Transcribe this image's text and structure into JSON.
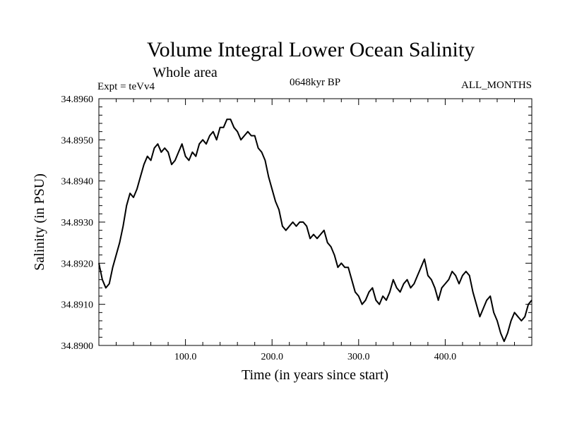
{
  "chart_data": {
    "type": "line",
    "title": "Volume Integral Lower Ocean Salinity",
    "subtitle": "Whole area",
    "experiment_label": "Expt = teVv4",
    "period_label": "0648kyr BP",
    "months_label": "ALL_MONTHS",
    "xlabel": "Time (in years since start)",
    "ylabel": "Salinity (in PSU)",
    "xlim": [
      0,
      500
    ],
    "ylim": [
      34.89,
      34.896
    ],
    "xticks": [
      100,
      200,
      300,
      400
    ],
    "xtick_labels": [
      "100.0",
      "200.0",
      "300.0",
      "400.0"
    ],
    "yticks": [
      34.89,
      34.891,
      34.892,
      34.893,
      34.894,
      34.895,
      34.896
    ],
    "ytick_labels": [
      "34.8900",
      "34.8910",
      "34.8920",
      "34.8930",
      "34.8940",
      "34.8950",
      "34.8960"
    ],
    "line_color": "#000000",
    "series": [
      {
        "name": "salinity",
        "x": [
          0,
          4,
          8,
          12,
          16,
          20,
          24,
          28,
          32,
          36,
          40,
          44,
          48,
          52,
          56,
          60,
          64,
          68,
          72,
          76,
          80,
          84,
          88,
          92,
          96,
          100,
          104,
          108,
          112,
          116,
          120,
          124,
          128,
          132,
          136,
          140,
          144,
          148,
          152,
          156,
          160,
          164,
          168,
          172,
          176,
          180,
          184,
          188,
          192,
          196,
          200,
          204,
          208,
          212,
          216,
          220,
          224,
          228,
          232,
          236,
          240,
          244,
          248,
          252,
          256,
          260,
          264,
          268,
          272,
          276,
          280,
          284,
          288,
          292,
          296,
          300,
          304,
          308,
          312,
          316,
          320,
          324,
          328,
          332,
          336,
          340,
          344,
          348,
          352,
          356,
          360,
          364,
          368,
          372,
          376,
          380,
          384,
          388,
          392,
          396,
          400,
          404,
          408,
          412,
          416,
          420,
          424,
          428,
          432,
          436,
          440,
          444,
          448,
          452,
          456,
          460,
          464,
          468,
          472,
          476,
          480,
          484,
          488,
          492,
          496,
          500
        ],
        "y": [
          34.892,
          34.8916,
          34.8914,
          34.8915,
          34.8919,
          34.8922,
          34.8925,
          34.8929,
          34.8934,
          34.8937,
          34.8936,
          34.8938,
          34.8941,
          34.8944,
          34.8946,
          34.8945,
          34.8948,
          34.8949,
          34.8947,
          34.8948,
          34.8947,
          34.8944,
          34.8945,
          34.8947,
          34.8949,
          34.8946,
          34.8945,
          34.8947,
          34.8946,
          34.8949,
          34.895,
          34.8949,
          34.8951,
          34.8952,
          34.895,
          34.8953,
          34.8953,
          34.8955,
          34.8955,
          34.8953,
          34.8952,
          34.895,
          34.8951,
          34.8952,
          34.8951,
          34.8951,
          34.8948,
          34.8947,
          34.8945,
          34.8941,
          34.8938,
          34.8935,
          34.8933,
          34.8929,
          34.8928,
          34.8929,
          34.893,
          34.8929,
          34.893,
          34.893,
          34.8929,
          34.8926,
          34.8927,
          34.8926,
          34.8927,
          34.8928,
          34.8925,
          34.8924,
          34.8922,
          34.8919,
          34.892,
          34.8919,
          34.8919,
          34.8916,
          34.8913,
          34.8912,
          34.891,
          34.8911,
          34.8913,
          34.8914,
          34.8911,
          34.891,
          34.8912,
          34.8911,
          34.8913,
          34.8916,
          34.8914,
          34.8913,
          34.8915,
          34.8916,
          34.8914,
          34.8915,
          34.8917,
          34.8919,
          34.8921,
          34.8917,
          34.8916,
          34.8914,
          34.8911,
          34.8914,
          34.8915,
          34.8916,
          34.8918,
          34.8917,
          34.8915,
          34.8917,
          34.8918,
          34.8917,
          34.8913,
          34.891,
          34.8907,
          34.8909,
          34.8911,
          34.8912,
          34.8908,
          34.8906,
          34.8903,
          34.8901,
          34.8903,
          34.8906,
          34.8908,
          34.8907,
          34.8906,
          34.8907,
          34.891,
          34.8911
        ]
      }
    ]
  }
}
